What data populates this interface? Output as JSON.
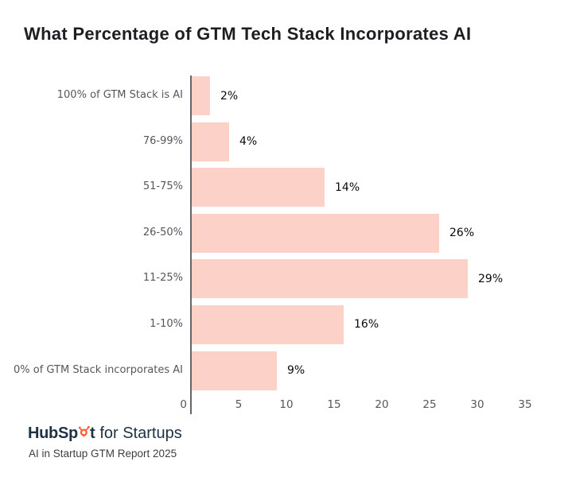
{
  "title": "What Percentage of GTM Tech Stack Incorporates AI",
  "chart_data": {
    "type": "bar",
    "orientation": "horizontal",
    "title": "What Percentage of GTM Tech Stack Incorporates AI",
    "categories": [
      "100% of GTM Stack is AI",
      "76-99%",
      "51-75%",
      "26-50%",
      "11-25%",
      "1-10%",
      "0% of GTM Stack incorporates AI"
    ],
    "values": [
      2,
      4,
      14,
      26,
      29,
      16,
      9
    ],
    "value_labels": [
      "2%",
      "4%",
      "14%",
      "26%",
      "29%",
      "16%",
      "9%"
    ],
    "xlabel": "",
    "ylabel": "",
    "xlim": [
      0,
      35
    ],
    "x_ticks": [
      0,
      5,
      10,
      15,
      20,
      25,
      30,
      35
    ],
    "grid": false,
    "legend": "none",
    "bar_color": "#fcd1c7",
    "axis_color": "#64666a",
    "label_color": "#54575c",
    "value_label_color": "#0b0b0b"
  },
  "footer": {
    "logo_part1": "HubSp",
    "logo_part2": "t",
    "logo_rest": "for Startups",
    "sprocket_icon": "hubspot-sprocket",
    "brand_orange": "#ff5c35",
    "brand_navy": "#213343",
    "report_line": "AI in Startup GTM Report 2025"
  }
}
